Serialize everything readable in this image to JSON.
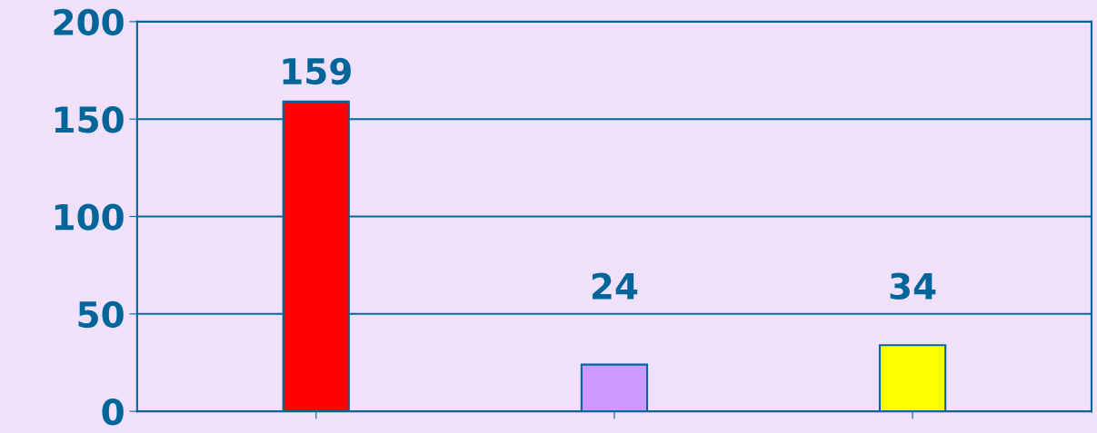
{
  "chart_data": {
    "type": "bar",
    "categories": [
      null,
      null,
      null
    ],
    "values": [
      159,
      24,
      34
    ],
    "colors": [
      "#ff0000",
      "#cc99ff",
      "#ffff00"
    ],
    "ylim": [
      0,
      200
    ],
    "yticks": [
      0,
      50,
      100,
      150,
      200
    ],
    "grid": "y",
    "data_labels": true
  }
}
